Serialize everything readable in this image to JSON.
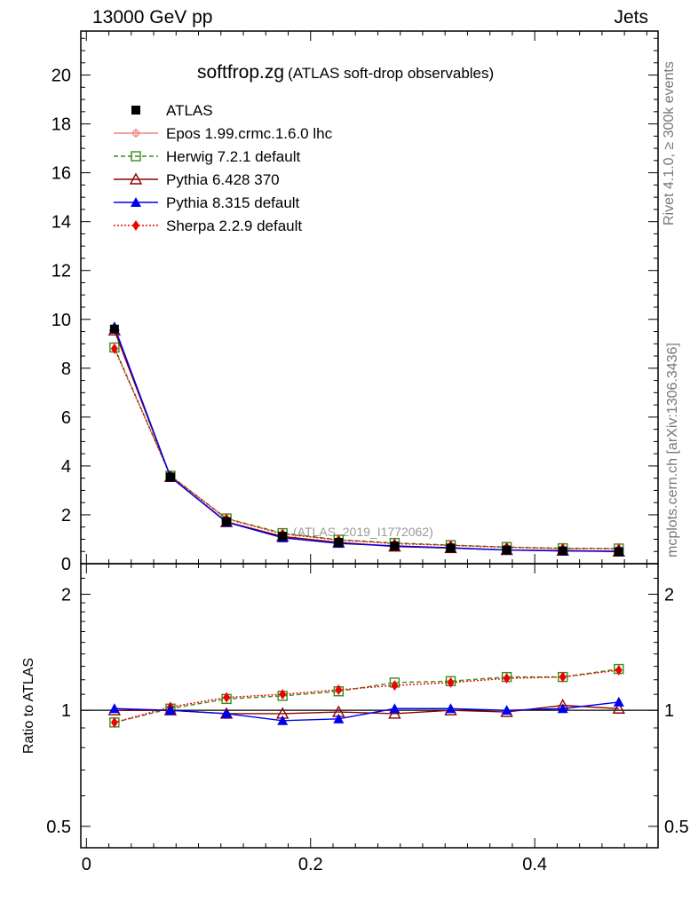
{
  "header": {
    "left": "13000 GeV pp",
    "right": "Jets"
  },
  "side_text": {
    "top": "Rivet 4.1.0, ≥ 300k events",
    "bottom": "mcplots.cern.ch [arXiv:1306.3436]"
  },
  "chart_data": [
    {
      "type": "line",
      "panel": "main",
      "title": "softfrop.zg",
      "subtitle": "(ATLAS soft-drop observables)",
      "watermark": "(ATLAS_2019_I1772062)",
      "xlabel": "",
      "ylabel": "",
      "xlim": [
        -0.005,
        0.51
      ],
      "ylim": [
        0,
        21.8
      ],
      "yticks": [
        0,
        2,
        4,
        6,
        8,
        10,
        12,
        14,
        16,
        18,
        20
      ],
      "x": [
        0.025,
        0.075,
        0.125,
        0.175,
        0.225,
        0.275,
        0.325,
        0.375,
        0.425,
        0.475
      ],
      "series": [
        {
          "name": "ATLAS",
          "color": "#000000",
          "marker": "square",
          "line": "none",
          "values": [
            9.6,
            3.55,
            1.72,
            1.12,
            0.87,
            0.72,
            0.64,
            0.56,
            0.52,
            0.49
          ]
        },
        {
          "name": "Epos 1.99.crmc.1.6.0 lhc",
          "color": "#f08080",
          "marker": "cross",
          "line": "solid",
          "values": [
            9.6,
            3.55,
            1.73,
            1.12,
            0.87,
            0.72,
            0.64,
            0.56,
            0.52,
            0.49
          ]
        },
        {
          "name": "Herwig 7.2.1 default",
          "color": "#3a8a1a",
          "marker": "open-square",
          "line": "dashed",
          "values": [
            8.85,
            3.6,
            1.85,
            1.25,
            0.98,
            0.85,
            0.76,
            0.68,
            0.63,
            0.62
          ]
        },
        {
          "name": "Pythia 6.428 370",
          "color": "#8b0000",
          "marker": "open-triangle",
          "line": "solid",
          "values": [
            9.55,
            3.55,
            1.7,
            1.11,
            0.87,
            0.7,
            0.64,
            0.56,
            0.54,
            0.5
          ]
        },
        {
          "name": "Pythia 8.315 default",
          "color": "#0000ee",
          "marker": "triangle",
          "line": "solid",
          "values": [
            9.7,
            3.55,
            1.7,
            1.06,
            0.83,
            0.73,
            0.65,
            0.56,
            0.52,
            0.51
          ]
        },
        {
          "name": "Sherpa 2.2.9 default",
          "color": "#ee0000",
          "marker": "diamond",
          "line": "dotted",
          "values": [
            8.8,
            3.6,
            1.84,
            1.22,
            0.97,
            0.82,
            0.75,
            0.67,
            0.62,
            0.61
          ]
        }
      ]
    },
    {
      "type": "line",
      "panel": "ratio",
      "xlabel": "",
      "ylabel": "Ratio to ATLAS",
      "yscale": "log",
      "xlim": [
        -0.005,
        0.51
      ],
      "ylim": [
        0.44,
        2.4
      ],
      "xticks": [
        0,
        0.2,
        0.4
      ],
      "xtick_labels": [
        "0",
        "0.2",
        "0.4"
      ],
      "yticks": [
        0.5,
        1,
        2
      ],
      "ytick_labels": [
        "0.5",
        "1",
        "2"
      ],
      "reference": 1,
      "x": [
        0.025,
        0.075,
        0.125,
        0.175,
        0.225,
        0.275,
        0.325,
        0.375,
        0.425,
        0.475
      ],
      "series": [
        {
          "name": "Herwig 7.2.1 default",
          "values": [
            0.93,
            1.01,
            1.07,
            1.09,
            1.12,
            1.18,
            1.19,
            1.22,
            1.22,
            1.28
          ]
        },
        {
          "name": "Pythia 6.428 370",
          "values": [
            1.0,
            1.0,
            0.98,
            0.98,
            0.99,
            0.98,
            1.0,
            0.99,
            1.03,
            1.01
          ]
        },
        {
          "name": "Pythia 8.315 default",
          "values": [
            1.01,
            1.0,
            0.98,
            0.94,
            0.95,
            1.01,
            1.01,
            1.0,
            1.01,
            1.05
          ]
        },
        {
          "name": "Sherpa 2.2.9 default",
          "values": [
            0.93,
            1.02,
            1.08,
            1.1,
            1.13,
            1.16,
            1.18,
            1.21,
            1.22,
            1.27
          ]
        }
      ]
    }
  ]
}
